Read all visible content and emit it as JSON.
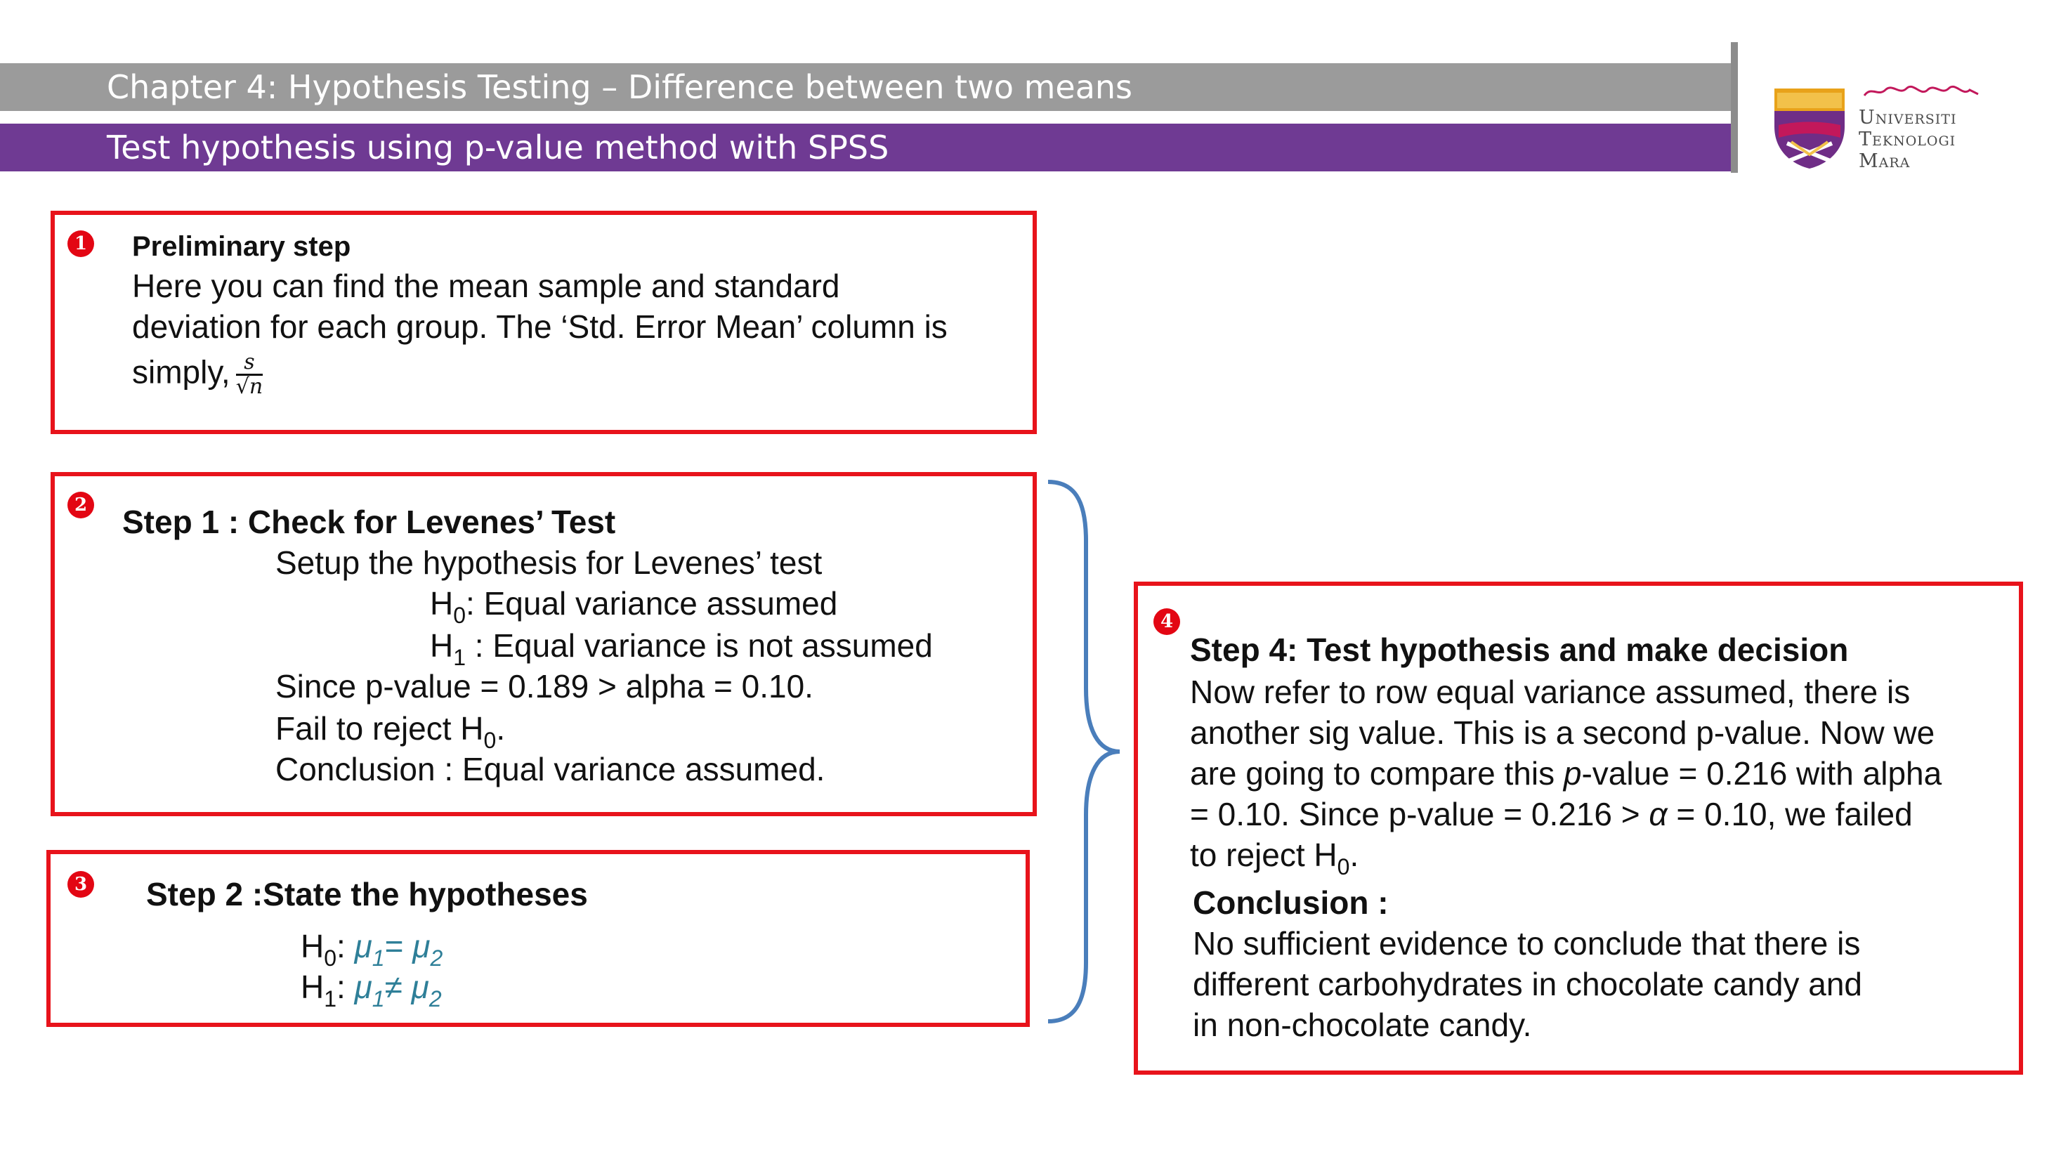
{
  "header": {
    "chapter": "Chapter 4: Hypothesis Testing – Difference between two means",
    "subtitle": "Test hypothesis using p-value method with SPSS"
  },
  "logo": {
    "line1": "Universiti",
    "line2": "Teknologi",
    "line3": "Mara"
  },
  "box1": {
    "number": "1",
    "title": "Preliminary step",
    "line1": "Here you can find the mean sample and standard",
    "line2": "deviation for each group. The ‘Std. Error Mean’ column is",
    "line3": "simply,",
    "frac_num": "s",
    "frac_den": "√n"
  },
  "box2": {
    "number": "2",
    "title": "Step 1 : Check for Levenes’ Test",
    "setup": "Setup the hypothesis for Levenes’ test",
    "h0_label": "H",
    "h0_sub": "0",
    "h0_text": ": Equal variance assumed",
    "h1_label": "H",
    "h1_sub": "1",
    "h1_text": " : Equal variance is not assumed",
    "since": "Since p-value = 0.189 > alpha = 0.10.",
    "fail": "Fail to reject H",
    "fail_sub": "0",
    "fail_end": ".",
    "conclusion": "Conclusion : Equal variance assumed."
  },
  "box3": {
    "number": "3",
    "title": "Step 2 :State the hypotheses",
    "h0_label": "H",
    "h0_sub": "0",
    "h0_colon": ": ",
    "h0_mu1": "μ",
    "h0_mu1_sub": "1",
    "h0_op": "= ",
    "h0_mu2": "μ",
    "h0_mu2_sub": "2",
    "h1_label": "H",
    "h1_sub": "1",
    "h1_colon": ": ",
    "h1_mu1": "μ",
    "h1_mu1_sub": "1",
    "h1_op": "≠ ",
    "h1_mu2": "μ",
    "h1_mu2_sub": "2"
  },
  "box4": {
    "number": "4",
    "title": "Step 4: Test hypothesis and make decision",
    "line1": "Now refer to row equal variance assumed, there is",
    "line2": "another sig value. This is a second p-value. Now we",
    "line3a": "are going to compare this ",
    "line3b": "p",
    "line3c": "-value = 0.216 with alpha",
    "line4a": "= 0.10. Since p-value = 0.216 > ",
    "line4b": "α",
    "line4c": " = 0.10, we failed",
    "line5": "to reject H",
    "line5_sub": "0",
    "line5_end": ".",
    "conclusion_title": "Conclusion :",
    "c1": "No sufficient evidence to conclude that there is",
    "c2": "different carbohydrates in chocolate candy and",
    "c3": "in  non-chocolate candy."
  }
}
